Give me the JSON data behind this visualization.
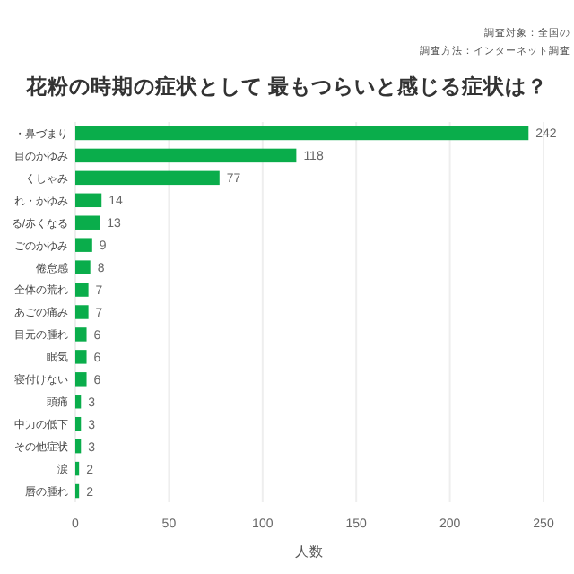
{
  "chart_data": {
    "type": "bar",
    "orientation": "horizontal",
    "title": "花粉の時期の症状として 最もつらいと感じる症状は？",
    "annotations": [
      "調査対象：全国の",
      "調査方法：インターネット調査"
    ],
    "categories": [
      "・鼻づまり",
      "目のかゆみ",
      "くしゃみ",
      "れ・かゆみ",
      "る/赤くなる",
      "ごのかゆみ",
      "倦怠感",
      "全体の荒れ",
      "あごの痛み",
      "目元の腫れ",
      "眠気",
      "寝付けない",
      "頭痛",
      "中力の低下",
      "その他症状",
      "涙",
      "唇の腫れ"
    ],
    "values": [
      242,
      118,
      77,
      14,
      13,
      9,
      8,
      7,
      7,
      6,
      6,
      6,
      3,
      3,
      3,
      2,
      2
    ],
    "color": "#0aad4b",
    "data_labels": true,
    "xlabel": "人数",
    "xlim": [
      0,
      250
    ],
    "xticks": [
      0,
      50,
      100,
      150,
      200,
      250
    ],
    "grid": "x"
  }
}
